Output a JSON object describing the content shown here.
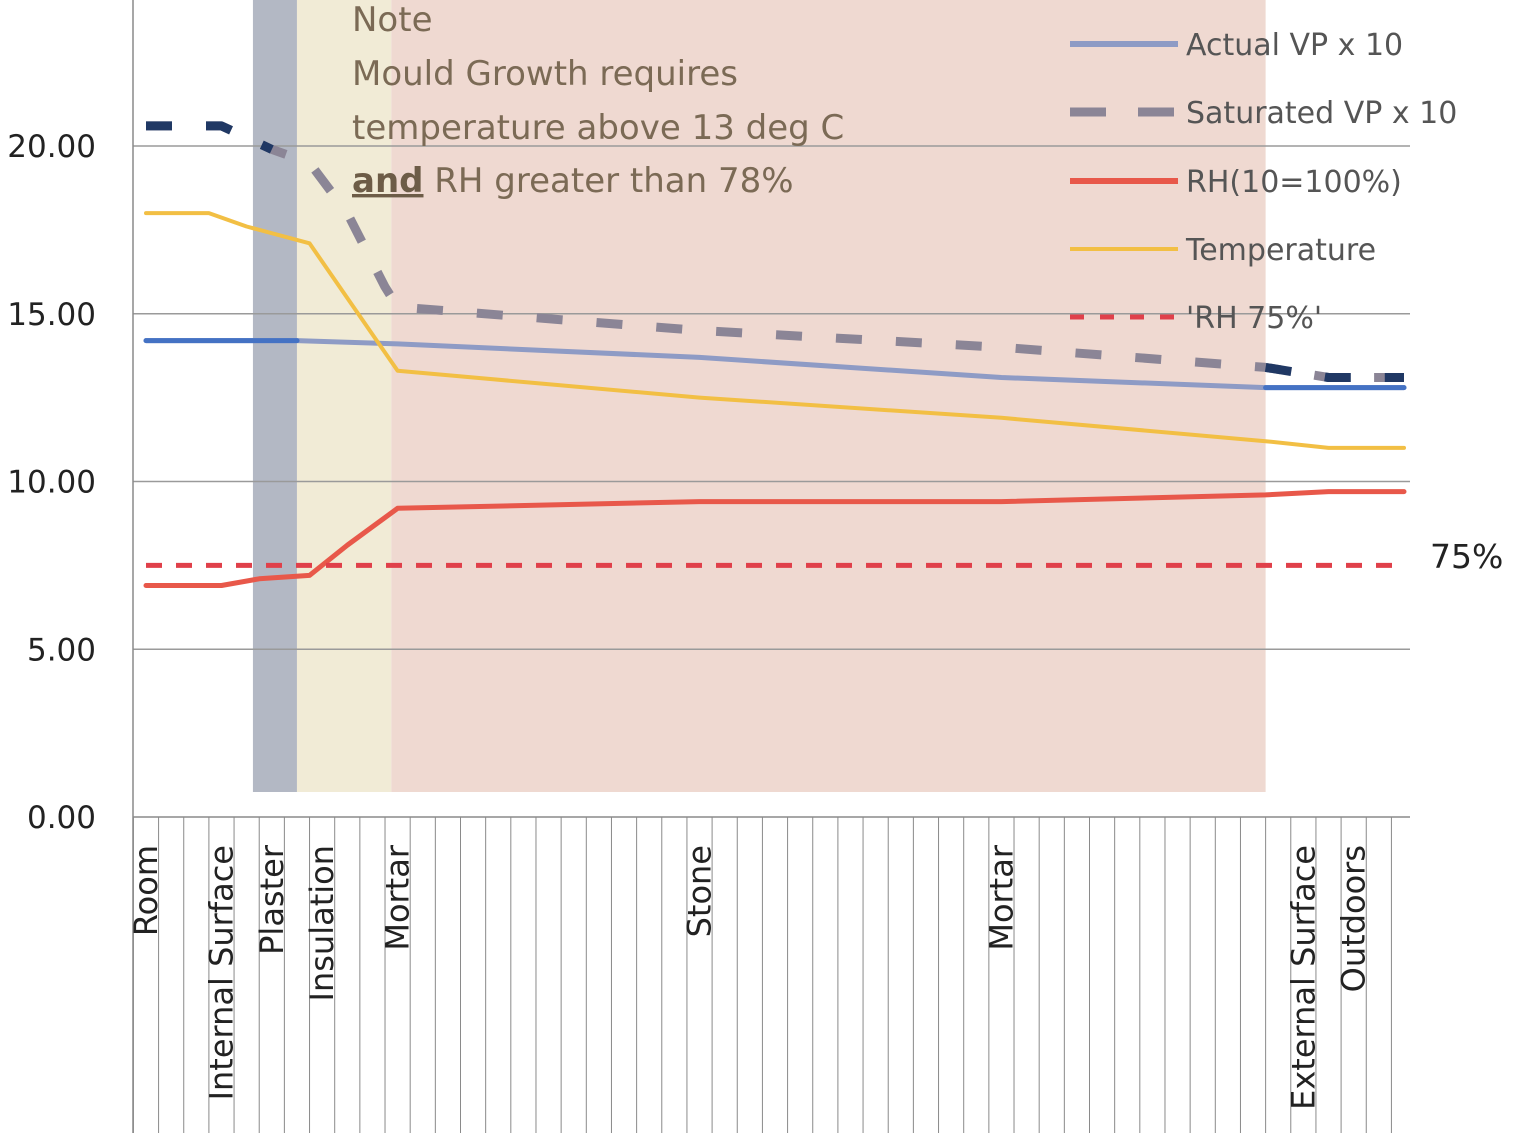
{
  "chart_data": {
    "type": "line",
    "title": "",
    "xlabel": "",
    "ylabel": "",
    "ylim": [
      0,
      20
    ],
    "y_ticks": [
      "0.00",
      "5.00",
      "10.00",
      "15.00",
      "20.00"
    ],
    "grid": true,
    "legend_position": "top-right",
    "n_points": 51,
    "x_labels": [
      {
        "index": 0,
        "label": "Room"
      },
      {
        "index": 3,
        "label": "Internal Surface"
      },
      {
        "index": 5,
        "label": "Plaster"
      },
      {
        "index": 7,
        "label": "Insulation"
      },
      {
        "index": 10,
        "label": "Mortar"
      },
      {
        "index": 22,
        "label": "Stone"
      },
      {
        "index": 34,
        "label": "Mortar"
      },
      {
        "index": 46,
        "label": "External Surface"
      },
      {
        "index": 48,
        "label": "Outdoors"
      }
    ],
    "bands": [
      {
        "name": "Plaster",
        "from": 4.25,
        "to": 6.0,
        "color": "#b3b8c4"
      },
      {
        "name": "Insulation",
        "from": 6.0,
        "to": 9.75,
        "color": "#f1ebd6"
      },
      {
        "name": "Stone",
        "from": 9.75,
        "to": 44.5,
        "color": "#efd9d1"
      }
    ],
    "series": [
      {
        "name": "Actual VP x 10",
        "color": "#8e9bc5",
        "color_edges": "#4472c4",
        "style": "solid",
        "points": [
          [
            0,
            14.2
          ],
          [
            6,
            14.2
          ],
          [
            10,
            14.1
          ],
          [
            22,
            13.7
          ],
          [
            34,
            13.1
          ],
          [
            44.5,
            12.8
          ],
          [
            50,
            12.8
          ]
        ]
      },
      {
        "name": "Saturated VP x 10",
        "color": "#8b8596",
        "color_edges": "#203864",
        "style": "dashed",
        "points": [
          [
            0,
            20.6
          ],
          [
            3,
            20.6
          ],
          [
            5,
            19.9
          ],
          [
            6.5,
            19.5
          ],
          [
            8,
            18.0
          ],
          [
            9.5,
            15.8
          ],
          [
            10,
            15.2
          ],
          [
            22,
            14.5
          ],
          [
            34,
            14.0
          ],
          [
            44.5,
            13.4
          ],
          [
            47,
            13.1
          ],
          [
            50,
            13.1
          ]
        ]
      },
      {
        "name": "RH(10=100%)",
        "color": "#e8584a",
        "style": "solid",
        "points": [
          [
            0,
            6.9
          ],
          [
            3,
            6.9
          ],
          [
            4.5,
            7.1
          ],
          [
            6.5,
            7.2
          ],
          [
            8,
            8.1
          ],
          [
            10,
            9.2
          ],
          [
            22,
            9.4
          ],
          [
            34,
            9.4
          ],
          [
            44.5,
            9.6
          ],
          [
            47,
            9.7
          ],
          [
            50,
            9.7
          ]
        ]
      },
      {
        "name": "Temperature",
        "color": "#f2bf44",
        "style": "solid",
        "points": [
          [
            0,
            18.0
          ],
          [
            2.5,
            18.0
          ],
          [
            4,
            17.6
          ],
          [
            6.5,
            17.1
          ],
          [
            10,
            13.3
          ],
          [
            22,
            12.5
          ],
          [
            34,
            11.9
          ],
          [
            44.5,
            11.2
          ],
          [
            47,
            11.0
          ],
          [
            50,
            11.0
          ]
        ]
      },
      {
        "name": "'RH 75%'",
        "color": "#e0404a",
        "style": "dotted",
        "points": [
          [
            0,
            7.5
          ],
          [
            50,
            7.5
          ]
        ]
      }
    ],
    "annotations": {
      "rh_line_label": "75%",
      "note_title": "Note",
      "note_line1": "Mould Growth requires",
      "note_line2": "temperature above 13 deg C",
      "note_line3_bold": "and",
      "note_line3_rest": " RH greater than 78%"
    }
  }
}
